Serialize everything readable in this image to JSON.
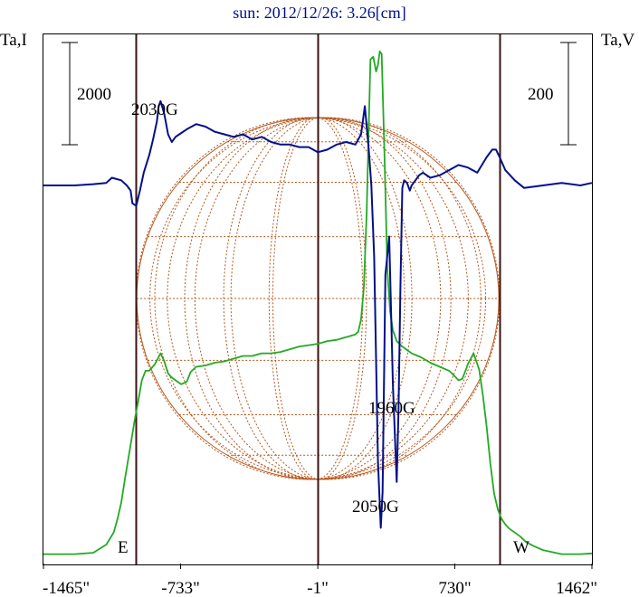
{
  "chart_data": {
    "type": "line",
    "title": "sun: 2012/12/26: 3.26[cm]",
    "ylabel_left": "Ta,I",
    "ylabel_right": "Ta,V",
    "scalebar_left": "2000",
    "scalebar_right": "200",
    "x_ticks": [
      {
        "label": "-1465\"",
        "value": -1465
      },
      {
        "label": "-733\"",
        "value": -733
      },
      {
        "label": "-1\"",
        "value": -1
      },
      {
        "label": "730\"",
        "value": 730
      },
      {
        "label": "1462\"",
        "value": 1462
      }
    ],
    "vertical_lines": [
      -970,
      -1,
      970
    ],
    "limb_labels": {
      "east": "E",
      "west": "W"
    },
    "annotations": [
      {
        "text": "2030G",
        "x": -840
      },
      {
        "text": "1960G",
        "x": 340
      },
      {
        "text": "2050G",
        "x": 330
      }
    ],
    "colors": {
      "stokes_I": "#22aa22",
      "stokes_V": "#00108a",
      "frame": "#000000",
      "markers": "#3a1212",
      "disk": "#b5581e"
    },
    "series": [
      {
        "key": "I",
        "x": [
          -1465,
          -1300,
          -1200,
          -1130,
          -1090,
          -1070,
          -1050,
          -1030,
          -1000,
          -980,
          -960,
          -940,
          -920,
          -900,
          -870,
          -840,
          -820,
          -800,
          -780,
          -750,
          -730,
          -700,
          -680,
          -650,
          -600,
          -550,
          -500,
          -450,
          -400,
          -350,
          -300,
          -250,
          -200,
          -150,
          -100,
          -50,
          -1,
          50,
          100,
          150,
          200,
          215,
          230,
          245,
          260,
          270,
          280,
          295,
          310,
          320,
          330,
          340,
          355,
          370,
          385,
          400,
          420,
          450,
          500,
          550,
          600,
          650,
          700,
          730,
          750,
          770,
          790,
          800,
          830,
          860,
          880,
          900,
          920,
          940,
          960,
          980,
          1000,
          1020,
          1050,
          1080,
          1110,
          1150,
          1200,
          1300,
          1400,
          1462
        ],
        "y": [
          70,
          70,
          80,
          140,
          230,
          330,
          450,
          630,
          880,
          1050,
          1200,
          1360,
          1430,
          1430,
          1480,
          1560,
          1500,
          1410,
          1380,
          1350,
          1330,
          1350,
          1420,
          1460,
          1470,
          1490,
          1500,
          1520,
          1540,
          1540,
          1560,
          1560,
          1570,
          1590,
          1610,
          1620,
          1630,
          1650,
          1660,
          1680,
          1700,
          1720,
          1810,
          2050,
          2600,
          3180,
          3740,
          3760,
          3650,
          3700,
          3800,
          3780,
          3030,
          2190,
          1870,
          1730,
          1650,
          1610,
          1560,
          1530,
          1490,
          1460,
          1430,
          1390,
          1360,
          1370,
          1440,
          1480,
          1560,
          1440,
          1250,
          1020,
          740,
          520,
          400,
          330,
          290,
          260,
          230,
          200,
          160,
          130,
          100,
          70,
          70,
          75
        ]
      },
      {
        "key": "V",
        "x": [
          -1465,
          -1300,
          -1200,
          -1130,
          -1100,
          -1050,
          -1020,
          -1000,
          -990,
          -970,
          -950,
          -930,
          -900,
          -880,
          -860,
          -850,
          -840,
          -820,
          -800,
          -780,
          -760,
          -740,
          -700,
          -650,
          -600,
          -550,
          -500,
          -450,
          -400,
          -350,
          -300,
          -250,
          -200,
          -150,
          -100,
          -50,
          -1,
          50,
          100,
          150,
          200,
          230,
          250,
          270,
          285,
          300,
          320,
          335,
          345,
          360,
          380,
          400,
          420,
          430,
          440,
          450,
          460,
          475,
          490,
          500,
          520,
          540,
          560,
          600,
          650,
          700,
          750,
          800,
          850,
          900,
          930,
          950,
          970,
          1000,
          1050,
          1100,
          1200,
          1300,
          1400,
          1462
        ],
        "y": [
          0,
          0,
          5,
          10,
          30,
          20,
          0,
          -20,
          -70,
          -80,
          -20,
          50,
          120,
          180,
          250,
          310,
          330,
          280,
          200,
          170,
          190,
          200,
          220,
          240,
          230,
          210,
          200,
          190,
          200,
          180,
          190,
          170,
          160,
          160,
          150,
          150,
          130,
          140,
          160,
          170,
          160,
          200,
          310,
          150,
          0,
          -280,
          -1080,
          -1340,
          -1200,
          -350,
          -200,
          -780,
          -1160,
          -880,
          -400,
          -10,
          20,
          10,
          -20,
          0,
          20,
          40,
          50,
          30,
          40,
          60,
          80,
          70,
          50,
          110,
          140,
          140,
          110,
          60,
          20,
          -10,
          0,
          10,
          0,
          10
        ]
      }
    ]
  }
}
